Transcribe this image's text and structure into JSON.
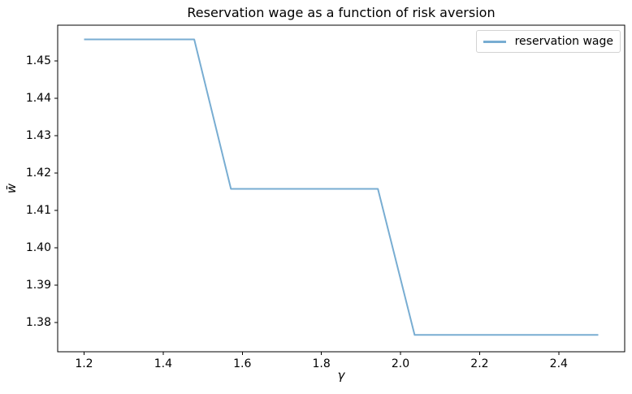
{
  "chart_data": {
    "type": "line",
    "title": "Reservation wage as a function of risk aversion",
    "xlabel": "γ",
    "ylabel": "w̄",
    "xlim": [
      1.1333,
      2.5667
    ],
    "ylim": [
      1.3722,
      1.4596
    ],
    "xticks": [
      1.2,
      1.4,
      1.6,
      1.8,
      2.0,
      2.2,
      2.4
    ],
    "xtick_labels": [
      "1.2",
      "1.4",
      "1.6",
      "1.8",
      "2.0",
      "2.2",
      "2.4"
    ],
    "yticks": [
      1.38,
      1.39,
      1.4,
      1.41,
      1.42,
      1.43,
      1.44,
      1.45
    ],
    "ytick_labels": [
      "1.38",
      "1.39",
      "1.40",
      "1.41",
      "1.42",
      "1.43",
      "1.44",
      "1.45"
    ],
    "grid": false,
    "legend": {
      "position": "upper right",
      "entries": [
        "reservation wage"
      ]
    },
    "series": [
      {
        "name": "reservation wage",
        "color": "#78add2",
        "line_width": 2,
        "x": [
          1.2,
          1.2929,
          1.3857,
          1.4786,
          1.5714,
          1.6643,
          1.7571,
          1.85,
          1.9429,
          2.0357,
          2.1286,
          2.2214,
          2.3143,
          2.4071,
          2.5
        ],
        "y": [
          1.4558,
          1.4558,
          1.4558,
          1.4558,
          1.4158,
          1.4158,
          1.4158,
          1.4158,
          1.4158,
          1.3767,
          1.3767,
          1.3767,
          1.3767,
          1.3767,
          1.3767
        ]
      }
    ],
    "axes_color": "#000000"
  }
}
